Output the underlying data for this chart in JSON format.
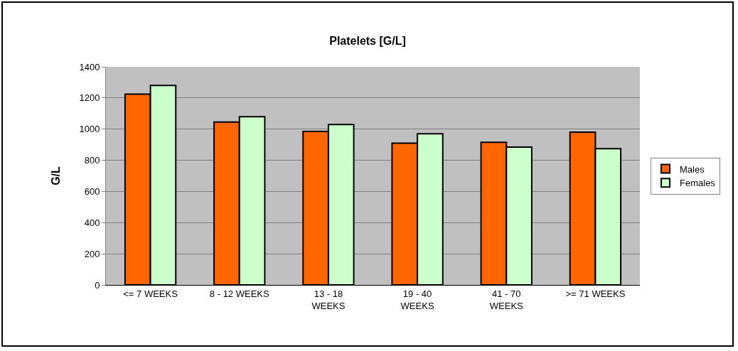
{
  "chart_data": {
    "type": "bar",
    "title": "Platelets [G/L]",
    "ylabel": "G/L",
    "categories": [
      "<= 7 WEEKS",
      "8 - 12 WEEKS",
      "13 - 18 WEEKS",
      "19 - 40 WEEKS",
      "41 - 70 WEEKS",
      ">= 71 WEEKS"
    ],
    "series": [
      {
        "name": "Males",
        "color": "#ff6600",
        "values": [
          1225,
          1045,
          985,
          910,
          915,
          980
        ]
      },
      {
        "name": "Females",
        "color": "#ccffcc",
        "values": [
          1280,
          1080,
          1030,
          970,
          885,
          875
        ]
      }
    ],
    "ylim": [
      0,
      1400
    ],
    "yticks": [
      0,
      200,
      400,
      600,
      800,
      1000,
      1200,
      1400
    ],
    "grid": "y",
    "legend": "right"
  }
}
